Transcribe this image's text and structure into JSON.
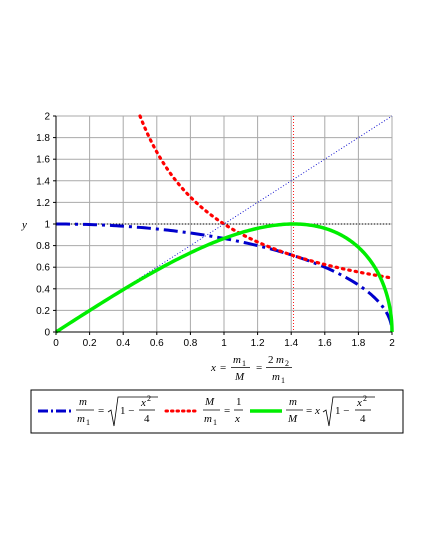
{
  "chart_data": {
    "type": "line",
    "xlim": [
      0,
      2
    ],
    "ylim": [
      0,
      2
    ],
    "x_ticks": [
      "0",
      "0.2",
      "0.4",
      "0.6",
      "0.8",
      "1",
      "1.2",
      "1.4",
      "1.6",
      "1.8",
      "2"
    ],
    "y_ticks": [
      "0",
      "0.2",
      "0.4",
      "0.6",
      "0.8",
      "1",
      "1.2",
      "1.4",
      "1.6",
      "1.8",
      "2"
    ],
    "ylabel": "y",
    "xlabel": "x = m1/M = 2 m2/m1",
    "grid": true,
    "legend_placement": "bottom",
    "series": [
      {
        "name": "m/m1 = sqrt(1 - x^2/4)",
        "color": "#0000cc",
        "style": "dash-dot",
        "x": [
          0,
          0.2,
          0.4,
          0.6,
          0.8,
          1.0,
          1.2,
          1.4,
          1.6,
          1.8,
          1.9,
          1.95,
          2.0
        ],
        "y": [
          1.0,
          0.995,
          0.98,
          0.954,
          0.917,
          0.866,
          0.8,
          0.714,
          0.6,
          0.436,
          0.312,
          0.222,
          0.0
        ]
      },
      {
        "name": "M/m1 = 1/x",
        "color": "#ff0000",
        "style": "dotted",
        "x": [
          0.5,
          0.6,
          0.7,
          0.8,
          0.9,
          1.0,
          1.2,
          1.4,
          1.6,
          1.8,
          2.0
        ],
        "y": [
          2.0,
          1.667,
          1.429,
          1.25,
          1.111,
          1.0,
          0.833,
          0.714,
          0.625,
          0.556,
          0.5
        ]
      },
      {
        "name": "m/M = x sqrt(1 - x^2/4)",
        "color": "#00ee00",
        "style": "solid",
        "x": [
          0,
          0.2,
          0.4,
          0.6,
          0.8,
          1.0,
          1.2,
          1.414,
          1.6,
          1.8,
          1.9,
          1.95,
          2.0
        ],
        "y": [
          0,
          0.199,
          0.392,
          0.572,
          0.733,
          0.866,
          0.96,
          1.0,
          0.96,
          0.785,
          0.593,
          0.433,
          0.0
        ]
      },
      {
        "color": "#0000cc",
        "style": "fine-dotted",
        "x": [
          0,
          2
        ],
        "y": [
          0,
          2
        ]
      }
    ],
    "reference_lines": [
      {
        "orientation": "horizontal",
        "value": 1,
        "color": "#000000",
        "style": "fine-dotted"
      },
      {
        "orientation": "vertical",
        "value": 1.414,
        "color": "#ff0000",
        "style": "fine-dotted"
      }
    ]
  },
  "text": {
    "ylabel": "y",
    "x": "x",
    "eq": "=",
    "m": "m",
    "m1": "m",
    "sub1": "1",
    "sub2": "2",
    "M": "M",
    "two": "2",
    "one": "1",
    "four": "4",
    "one_minus": "1 −",
    "x2": "x",
    "sq": "2"
  }
}
